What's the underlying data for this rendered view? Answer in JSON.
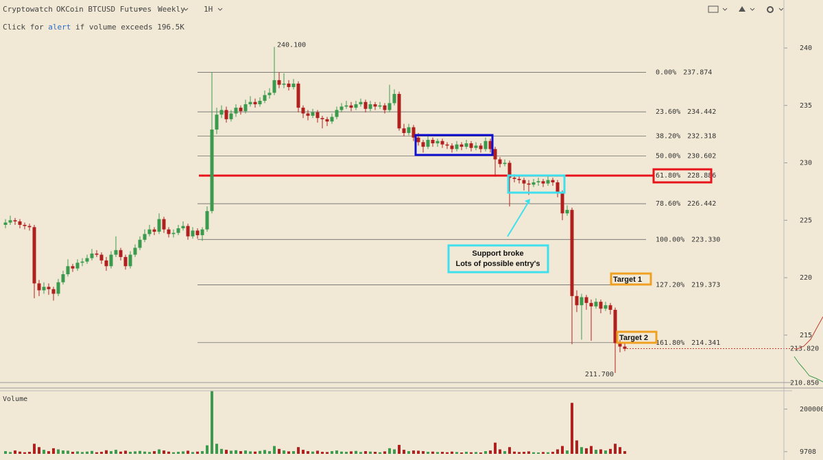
{
  "header": {
    "brand": "Cryptowatch",
    "market": "OKCoin BTCUSD Futures",
    "period": "Weekly",
    "interval": "1H",
    "alert_text": [
      "Click for",
      "alert",
      "if volume exceeds 196.5K"
    ]
  },
  "chart_data": {
    "type": "candlestick",
    "up_color": "#3c9a4e",
    "down_color": "#b0201e",
    "ylim": [
      210.45,
      244.18
    ],
    "yticks": [
      215,
      220,
      225,
      230,
      235,
      240
    ],
    "scale_bottom": {
      "value": 210.85,
      "label": "210.850"
    },
    "last_price": {
      "value": 213.82,
      "label": "213.820",
      "color": "#c0392b"
    },
    "ohlc": [
      [
        224.6,
        225.1,
        224.3,
        224.8
      ],
      [
        224.8,
        225.4,
        224.6,
        225.0
      ],
      [
        225.0,
        225.2,
        224.6,
        224.9
      ],
      [
        224.9,
        225.1,
        224.3,
        224.6
      ],
      [
        224.6,
        224.8,
        224.2,
        224.5
      ],
      [
        224.5,
        224.7,
        224.1,
        224.4
      ],
      [
        224.4,
        224.6,
        218.2,
        219.5
      ],
      [
        219.5,
        219.8,
        218.4,
        218.9
      ],
      [
        218.9,
        219.6,
        218.6,
        219.2
      ],
      [
        219.2,
        219.5,
        218.5,
        219.0
      ],
      [
        219.0,
        219.2,
        218.0,
        218.6
      ],
      [
        218.6,
        219.9,
        218.4,
        219.6
      ],
      [
        219.6,
        220.6,
        219.4,
        220.3
      ],
      [
        220.3,
        221.6,
        220.1,
        221.0
      ],
      [
        221.0,
        221.2,
        220.5,
        220.8
      ],
      [
        220.8,
        221.6,
        220.6,
        221.3
      ],
      [
        221.3,
        221.7,
        221.0,
        221.4
      ],
      [
        221.4,
        222.0,
        221.2,
        221.7
      ],
      [
        221.7,
        222.5,
        221.5,
        222.1
      ],
      [
        222.1,
        222.4,
        221.8,
        222.0
      ],
      [
        222.0,
        222.2,
        221.2,
        221.5
      ],
      [
        221.5,
        221.8,
        220.6,
        221.0
      ],
      [
        221.0,
        222.3,
        220.8,
        222.0
      ],
      [
        222.0,
        223.6,
        221.8,
        222.4
      ],
      [
        222.4,
        222.6,
        221.5,
        221.8
      ],
      [
        221.8,
        222.0,
        220.7,
        221.0
      ],
      [
        221.0,
        222.3,
        220.8,
        222.0
      ],
      [
        222.0,
        222.9,
        221.8,
        222.6
      ],
      [
        222.6,
        223.6,
        222.4,
        223.3
      ],
      [
        223.3,
        224.2,
        223.1,
        223.8
      ],
      [
        223.8,
        224.6,
        223.6,
        224.2
      ],
      [
        224.2,
        224.4,
        223.7,
        224.0
      ],
      [
        224.0,
        225.6,
        223.8,
        225.1
      ],
      [
        225.1,
        225.3,
        223.9,
        224.2
      ],
      [
        224.2,
        224.4,
        223.5,
        223.8
      ],
      [
        223.8,
        224.2,
        223.5,
        223.9
      ],
      [
        223.9,
        224.6,
        223.7,
        224.3
      ],
      [
        224.3,
        224.9,
        224.1,
        224.5
      ],
      [
        224.5,
        224.7,
        223.3,
        223.6
      ],
      [
        223.6,
        224.4,
        223.4,
        224.1
      ],
      [
        224.1,
        224.3,
        223.4,
        223.7
      ],
      [
        223.7,
        224.4,
        223.2,
        224.2
      ],
      [
        224.2,
        226.2,
        224.0,
        225.8
      ],
      [
        225.8,
        237.9,
        225.6,
        232.9
      ],
      [
        232.9,
        234.8,
        232.5,
        234.2
      ],
      [
        234.2,
        235.0,
        233.9,
        234.6
      ],
      [
        234.6,
        234.9,
        233.5,
        233.8
      ],
      [
        233.8,
        234.6,
        233.6,
        234.3
      ],
      [
        234.3,
        235.1,
        234.0,
        234.8
      ],
      [
        234.8,
        235.0,
        234.2,
        234.5
      ],
      [
        234.5,
        235.5,
        234.3,
        235.1
      ],
      [
        235.1,
        235.8,
        234.9,
        235.3
      ],
      [
        235.3,
        235.6,
        234.8,
        235.1
      ],
      [
        235.1,
        235.7,
        234.9,
        235.4
      ],
      [
        235.4,
        236.3,
        235.2,
        235.9
      ],
      [
        235.9,
        236.5,
        235.6,
        236.1
      ],
      [
        236.1,
        240.1,
        235.9,
        237.2
      ],
      [
        237.2,
        237.9,
        236.5,
        236.8
      ],
      [
        236.8,
        237.8,
        236.5,
        236.9
      ],
      [
        236.9,
        237.2,
        236.3,
        236.6
      ],
      [
        236.6,
        237.3,
        236.4,
        236.9
      ],
      [
        236.9,
        237.1,
        234.4,
        234.8
      ],
      [
        234.8,
        235.0,
        233.9,
        234.3
      ],
      [
        234.3,
        234.6,
        233.7,
        234.1
      ],
      [
        234.1,
        234.7,
        233.9,
        234.4
      ],
      [
        234.4,
        234.6,
        233.5,
        233.9
      ],
      [
        233.9,
        234.1,
        233.0,
        233.8
      ],
      [
        233.8,
        234.0,
        233.2,
        233.6
      ],
      [
        233.6,
        234.3,
        233.4,
        234.0
      ],
      [
        234.0,
        234.9,
        233.8,
        234.6
      ],
      [
        234.6,
        235.2,
        234.4,
        234.9
      ],
      [
        234.9,
        235.4,
        234.7,
        235.0
      ],
      [
        235.0,
        235.3,
        234.5,
        234.8
      ],
      [
        234.8,
        235.4,
        234.6,
        235.1
      ],
      [
        235.1,
        235.6,
        234.9,
        235.3
      ],
      [
        235.3,
        235.5,
        234.4,
        234.7
      ],
      [
        234.7,
        235.4,
        234.5,
        235.1
      ],
      [
        235.1,
        235.3,
        234.6,
        234.9
      ],
      [
        234.9,
        235.3,
        234.7,
        235.0
      ],
      [
        235.0,
        235.2,
        234.3,
        234.6
      ],
      [
        234.6,
        236.8,
        234.4,
        235.2
      ],
      [
        235.2,
        236.4,
        235.0,
        236.0
      ],
      [
        236.0,
        236.2,
        232.8,
        233.0
      ],
      [
        233.0,
        233.4,
        232.3,
        232.6
      ],
      [
        232.6,
        233.4,
        232.4,
        233.1
      ],
      [
        233.1,
        233.3,
        231.9,
        232.2
      ],
      [
        232.2,
        232.6,
        231.5,
        231.8
      ],
      [
        231.8,
        232.0,
        230.9,
        231.4
      ],
      [
        231.4,
        232.3,
        231.2,
        232.0
      ],
      [
        232.0,
        232.2,
        231.4,
        231.7
      ],
      [
        231.7,
        232.1,
        231.4,
        231.9
      ],
      [
        231.9,
        232.1,
        231.3,
        231.6
      ],
      [
        231.6,
        231.8,
        231.2,
        231.5
      ],
      [
        231.5,
        231.7,
        230.9,
        231.2
      ],
      [
        231.2,
        231.9,
        231.0,
        231.6
      ],
      [
        231.6,
        231.8,
        231.1,
        231.4
      ],
      [
        231.4,
        232.0,
        231.2,
        231.7
      ],
      [
        231.7,
        231.9,
        231.0,
        231.3
      ],
      [
        231.3,
        231.8,
        231.1,
        231.5
      ],
      [
        231.5,
        231.7,
        230.9,
        231.2
      ],
      [
        231.2,
        232.2,
        231.0,
        231.9
      ],
      [
        231.9,
        232.1,
        230.9,
        231.2
      ],
      [
        231.2,
        231.4,
        228.8,
        230.3
      ],
      [
        230.3,
        230.5,
        229.6,
        229.9
      ],
      [
        229.9,
        230.3,
        229.7,
        230.0
      ],
      [
        230.0,
        230.2,
        226.2,
        228.7
      ],
      [
        228.7,
        229.0,
        228.3,
        228.6
      ],
      [
        228.6,
        228.9,
        228.2,
        228.5
      ],
      [
        228.5,
        228.7,
        227.6,
        228.2
      ],
      [
        228.2,
        228.5,
        227.2,
        228.1
      ],
      [
        228.1,
        228.6,
        227.9,
        228.3
      ],
      [
        228.3,
        228.7,
        228.0,
        228.4
      ],
      [
        228.4,
        228.6,
        227.9,
        228.2
      ],
      [
        228.2,
        228.8,
        228.0,
        228.5
      ],
      [
        228.5,
        228.7,
        228.0,
        228.3
      ],
      [
        228.3,
        228.5,
        227.0,
        227.4
      ],
      [
        227.4,
        227.6,
        225.0,
        225.6
      ],
      [
        225.6,
        226.3,
        225.4,
        225.9
      ],
      [
        225.9,
        226.1,
        214.2,
        218.4
      ],
      [
        218.4,
        218.9,
        217.0,
        217.6
      ],
      [
        217.6,
        218.6,
        214.6,
        218.3
      ],
      [
        218.3,
        218.5,
        217.2,
        217.8
      ],
      [
        217.8,
        218.1,
        214.5,
        217.5
      ],
      [
        217.5,
        218.2,
        217.3,
        217.9
      ],
      [
        217.9,
        218.1,
        216.9,
        217.3
      ],
      [
        217.3,
        217.9,
        217.1,
        217.6
      ],
      [
        217.6,
        217.8,
        216.8,
        217.2
      ],
      [
        217.2,
        217.4,
        211.7,
        214.3
      ],
      [
        214.3,
        214.6,
        213.5,
        214.0
      ],
      [
        214.0,
        214.3,
        213.6,
        213.8
      ]
    ],
    "volume_title": "Volume",
    "vylim": [
      0,
      282000
    ],
    "vyticks": [
      9708,
      200000
    ],
    "volume": [
      12000,
      8000,
      15000,
      10000,
      7000,
      9000,
      45000,
      30000,
      18000,
      12000,
      25000,
      20000,
      15000,
      14000,
      9000,
      11000,
      8000,
      10000,
      13000,
      7000,
      9000,
      16000,
      12000,
      18000,
      10000,
      14000,
      9000,
      11000,
      13000,
      10000,
      8000,
      12000,
      20000,
      15000,
      10000,
      7000,
      9000,
      11000,
      14000,
      8000,
      10000,
      12000,
      38000,
      280000,
      45000,
      22000,
      18000,
      14000,
      16000,
      12000,
      15000,
      11000,
      10000,
      13000,
      17000,
      12000,
      35000,
      22000,
      15000,
      11000,
      12000,
      30000,
      18000,
      12000,
      10000,
      14000,
      9000,
      8000,
      12000,
      15000,
      10000,
      9000,
      11000,
      13000,
      8000,
      12000,
      10000,
      9000,
      7000,
      11000,
      25000,
      20000,
      40000,
      18000,
      12000,
      15000,
      14000,
      12000,
      9000,
      10000,
      8000,
      9000,
      7000,
      10000,
      8000,
      6000,
      9000,
      7000,
      8000,
      6000,
      12000,
      15000,
      50000,
      20000,
      12000,
      30000,
      10000,
      8000,
      9000,
      11000,
      7000,
      6000,
      8000,
      7000,
      9000,
      20000,
      35000,
      15000,
      228000,
      60000,
      30000,
      25000,
      35000,
      18000,
      20000,
      15000,
      22000,
      45000,
      30000,
      12000
    ],
    "fib_levels": [
      {
        "ratio": "0.00%",
        "value": 237.874,
        "color": "#555555"
      },
      {
        "ratio": "23.60%",
        "value": 234.442,
        "color": "#555555"
      },
      {
        "ratio": "38.20%",
        "value": 232.318,
        "color": "#555555"
      },
      {
        "ratio": "50.00%",
        "value": 230.602,
        "color": "#555555"
      },
      {
        "ratio": "61.80%",
        "value": 228.886,
        "color": "#e8121b"
      },
      {
        "ratio": "78.60%",
        "value": 226.442,
        "color": "#555555"
      },
      {
        "ratio": "100.00%",
        "value": 223.33,
        "label": "223.330",
        "color": "#555555"
      },
      {
        "ratio": "127.20%",
        "value": 219.373,
        "color": "#555555"
      },
      {
        "ratio": "161.80%",
        "value": 214.341,
        "color": "#555555"
      }
    ],
    "high_label": {
      "value": 240.1,
      "label": "240.100"
    },
    "low_label": {
      "value": 211.7,
      "label": "211.700"
    },
    "callout": [
      "Support broke",
      "Lots of possible entry's"
    ],
    "targets": [
      "Target 1",
      "Target 2"
    ]
  }
}
